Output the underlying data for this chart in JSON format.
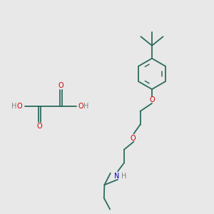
{
  "bg_color": "#e8e8e8",
  "bond_color": "#2d6b5e",
  "oxygen_color": "#cc0000",
  "nitrogen_color": "#0000bb",
  "hydrogen_color": "#808080",
  "figsize": [
    3.0,
    3.0
  ],
  "dpi": 100,
  "xlim": [
    0,
    10
  ],
  "ylim": [
    0,
    10
  ]
}
